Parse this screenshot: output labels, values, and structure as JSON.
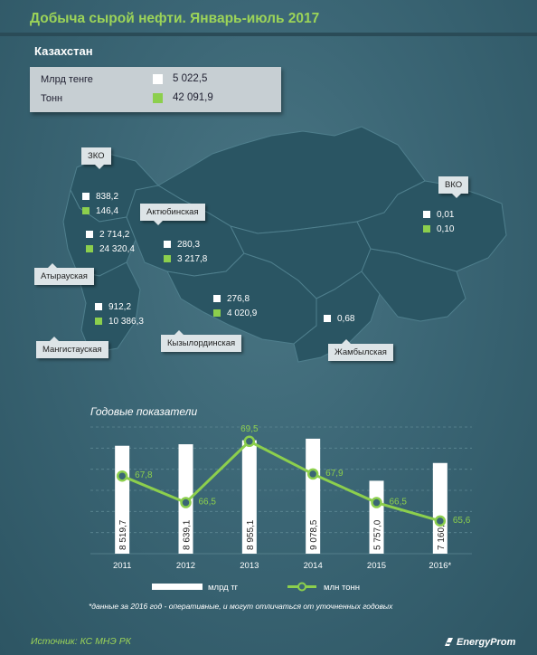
{
  "title": "Добыча сырой нефти. Январь-июль 2017",
  "country": {
    "label": "Казахстан",
    "rows": [
      {
        "label": "Млрд тенге",
        "value": "5 022,5",
        "color": "#ffffff"
      },
      {
        "label": "Тонн",
        "value": "42 091,9",
        "color": "#8ccf4d"
      }
    ]
  },
  "regions": {
    "zko": {
      "name": "ЗКО",
      "tenge": "838,2",
      "tons": "146,4"
    },
    "atyrau": {
      "name": "Атырауская",
      "tenge": "2 714,2",
      "tons": "24 320,4"
    },
    "mangistau": {
      "name": "Мангистауская",
      "tenge": "912,2",
      "tons": "10 386,3"
    },
    "aktobe": {
      "name": "Актюбинская",
      "tenge": "280,3",
      "tons": "3 217,8"
    },
    "kyzylorda": {
      "name": "Кызылординская",
      "tenge": "276,8",
      "tons": "4 020,9"
    },
    "zhambyl": {
      "name": "Жамбылская",
      "tenge": "0,68"
    },
    "vko": {
      "name": "ВКО",
      "tenge": "0,01",
      "tons": "0,10"
    }
  },
  "chart_title": "Годовые показатели",
  "chart_data": {
    "type": "bar",
    "categories": [
      "2011",
      "2012",
      "2013",
      "2014",
      "2015",
      "2016*"
    ],
    "series": [
      {
        "name": "млрд тг",
        "type": "bar",
        "color": "#ffffff",
        "values": [
          8519.7,
          8639.1,
          8955.1,
          9078.5,
          5757.0,
          7160.2
        ],
        "labels": [
          "8 519,7",
          "8 639,1",
          "8 955,1",
          "9 078,5",
          "5 757,0",
          "7 160,2"
        ]
      },
      {
        "name": "млн тонн",
        "type": "line",
        "color": "#8ccf4d",
        "values": [
          67.8,
          66.5,
          69.5,
          67.9,
          66.5,
          65.6
        ],
        "labels": [
          "67,8",
          "66,5",
          "69,5",
          "67,9",
          "66,5",
          "65,6"
        ]
      }
    ],
    "grid": true,
    "legend": "bottom"
  },
  "footnote": "*данные за 2016 год - оперативные, и могут отличаться от уточненных годовых",
  "source": "Источник: КС МНЭ РК",
  "brand": "EnergyProm"
}
